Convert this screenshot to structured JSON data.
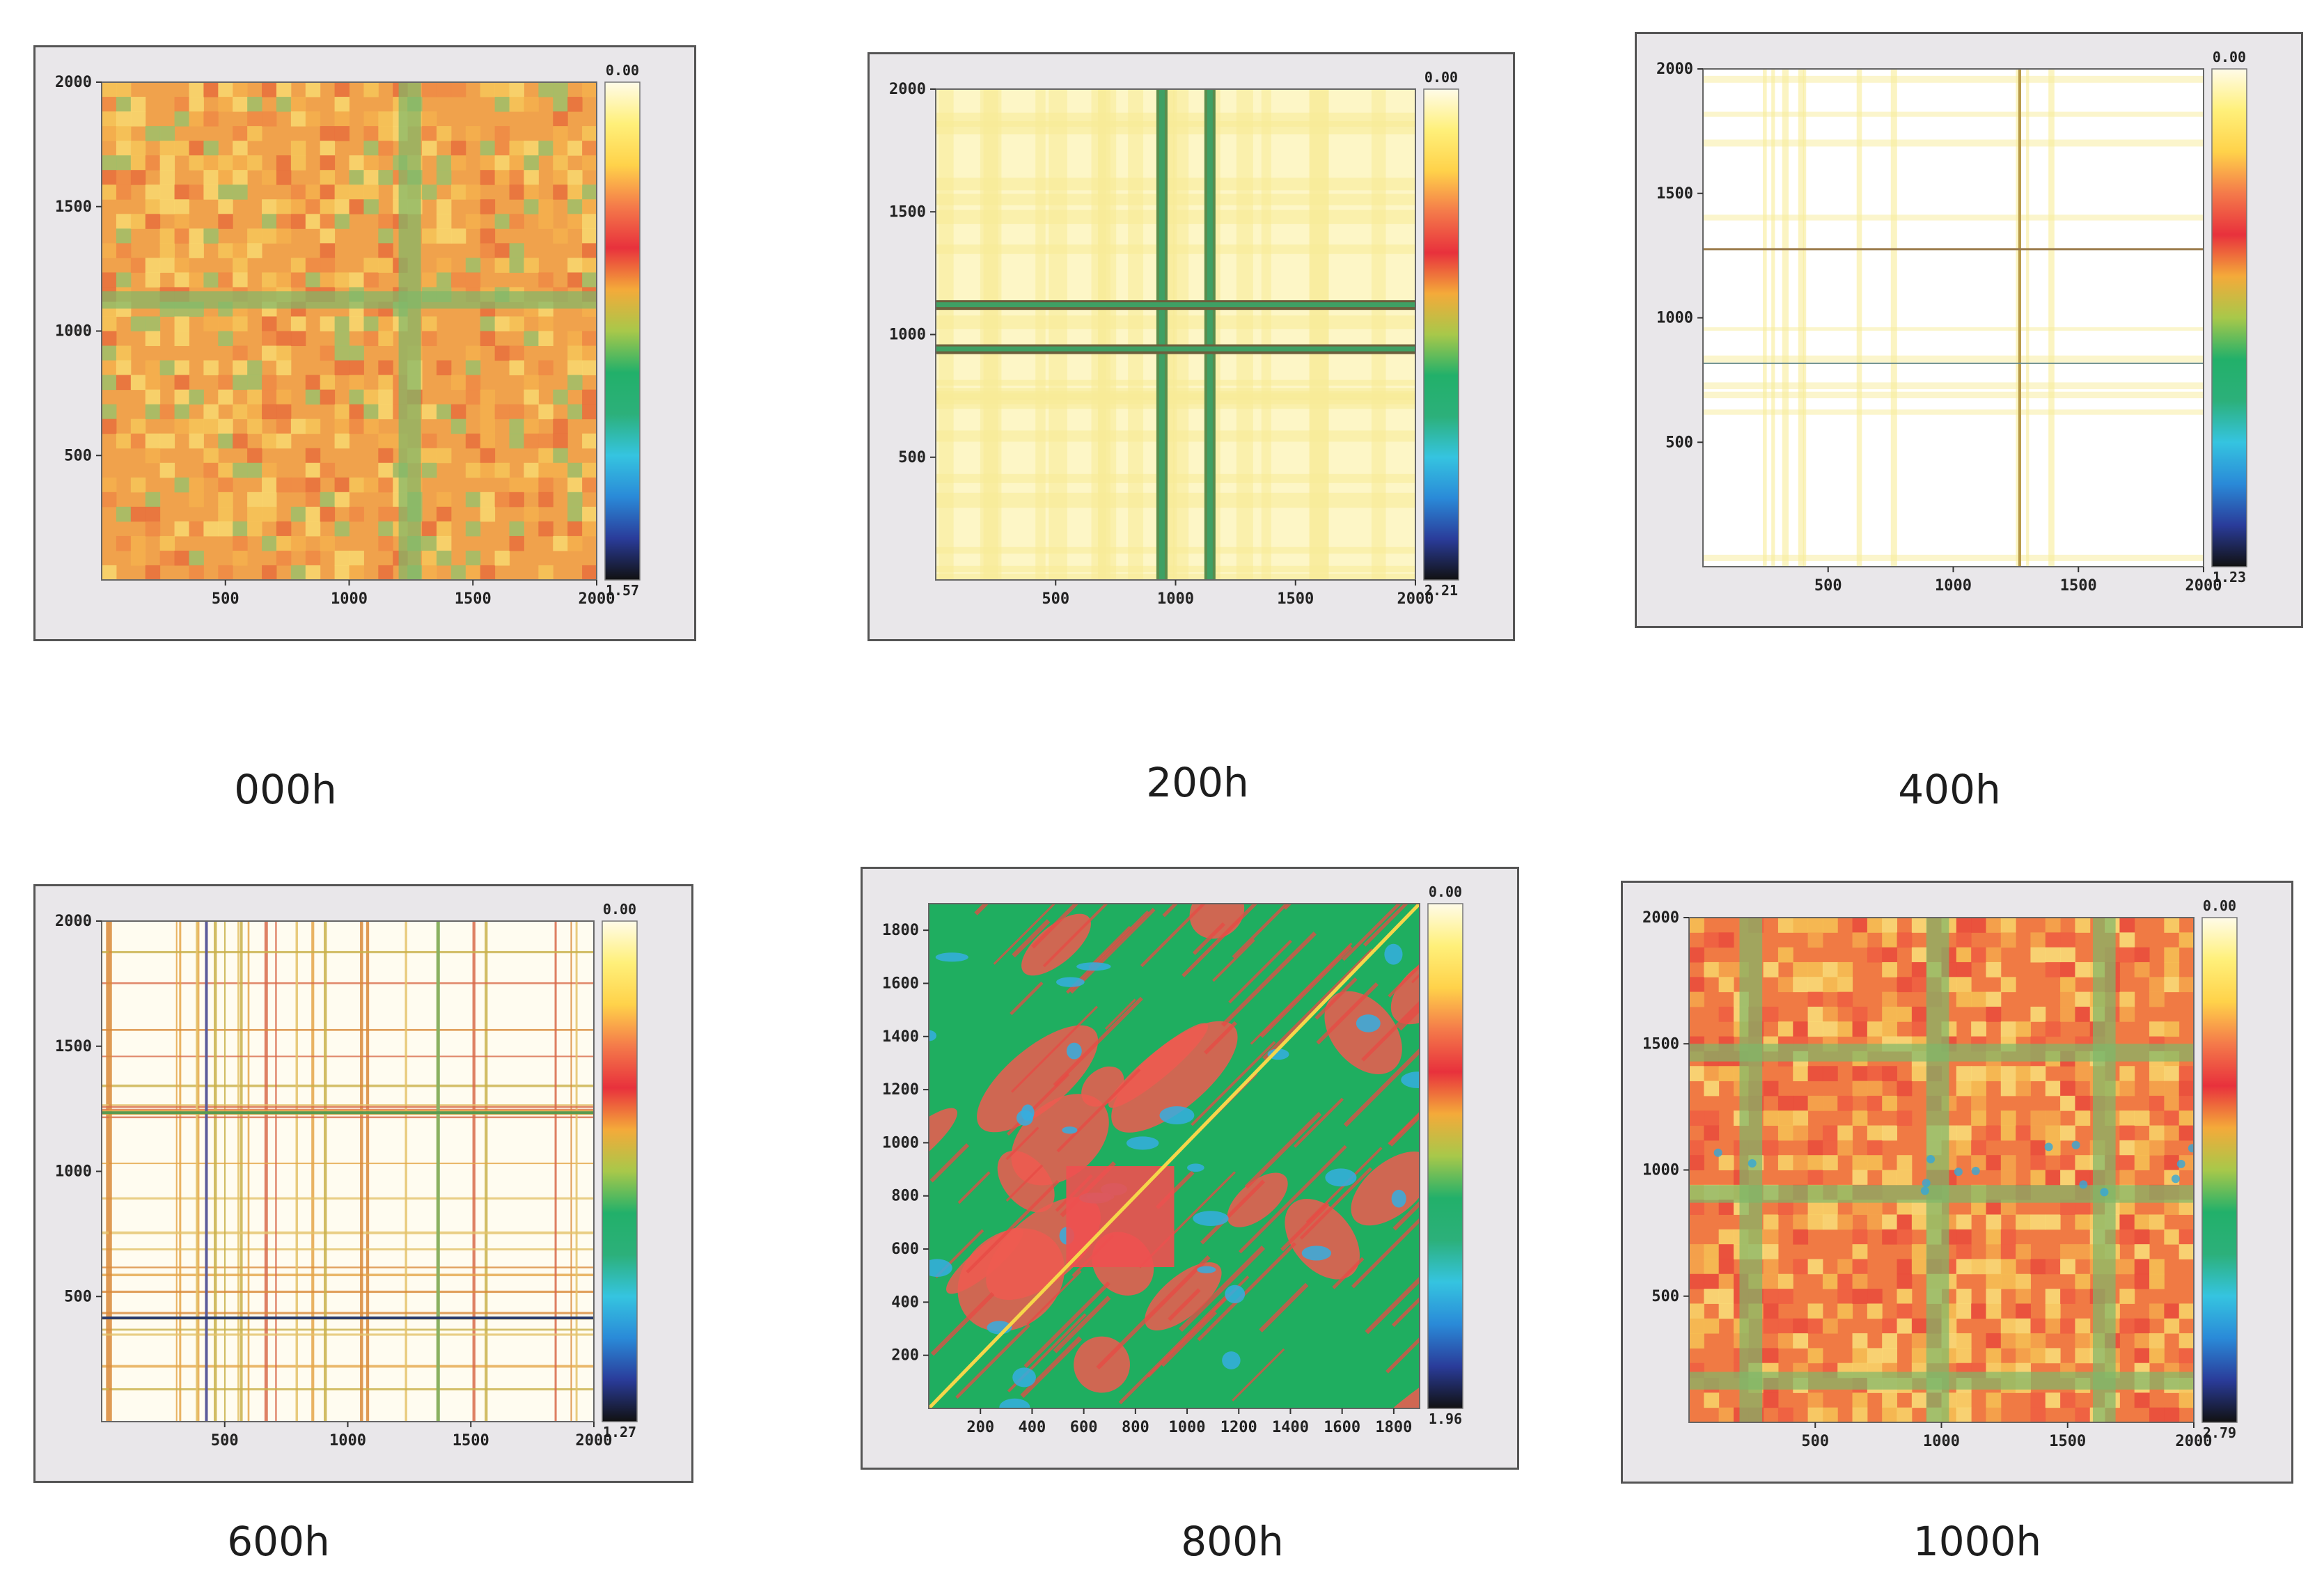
{
  "panels": [
    {
      "id": "000h",
      "caption": "000h",
      "pattern": "dense-orange",
      "y_ticks": [
        "2000",
        "1500",
        "1000",
        "500"
      ],
      "x_ticks": [
        "500",
        "1000",
        "1500",
        "2000"
      ],
      "colorbar_top": "0.00",
      "colorbar_bottom": "1.57",
      "range": [
        0,
        2000
      ]
    },
    {
      "id": "200h",
      "caption": "200h",
      "pattern": "pale-yellow-cross",
      "y_ticks": [
        "2000",
        "1500",
        "1000",
        "500"
      ],
      "x_ticks": [
        "500",
        "1000",
        "1500",
        "2000"
      ],
      "colorbar_top": "0.00",
      "colorbar_bottom": "2.21",
      "range": [
        0,
        2000
      ]
    },
    {
      "id": "400h",
      "caption": "400h",
      "pattern": "mostly-white",
      "y_ticks": [
        "2000",
        "1500",
        "1000",
        "500"
      ],
      "x_ticks": [
        "500",
        "1000",
        "1500",
        "2000"
      ],
      "colorbar_top": "0.00",
      "colorbar_bottom": "1.23",
      "range": [
        0,
        2000
      ]
    },
    {
      "id": "600h",
      "caption": "600h",
      "pattern": "sparse-lines",
      "y_ticks": [
        "2000",
        "1500",
        "1000",
        "500"
      ],
      "x_ticks": [
        "500",
        "1000",
        "1500",
        "2000"
      ],
      "colorbar_top": "0.00",
      "colorbar_bottom": "1.27",
      "range": [
        0,
        2000
      ]
    },
    {
      "id": "800h",
      "caption": "800h",
      "pattern": "green-diagonal",
      "y_ticks": [
        "1800",
        "1600",
        "1400",
        "1200",
        "1000",
        "800",
        "600",
        "400",
        "200"
      ],
      "x_ticks": [
        "200",
        "400",
        "600",
        "800",
        "1000",
        "1200",
        "1400",
        "1600",
        "1800"
      ],
      "colorbar_top": "0.00",
      "colorbar_bottom": "1.96",
      "range": [
        0,
        1900
      ]
    },
    {
      "id": "1000h",
      "caption": "1000h",
      "pattern": "dense-red-yellow",
      "y_ticks": [
        "2000",
        "1500",
        "1000",
        "500"
      ],
      "x_ticks": [
        "500",
        "1000",
        "1500",
        "2000"
      ],
      "colorbar_top": "0.00",
      "colorbar_bottom": "2.79",
      "range": [
        0,
        2000
      ]
    }
  ],
  "chart_data": [
    {
      "type": "heatmap",
      "title": "000h",
      "xlim": [
        0,
        2000
      ],
      "ylim": [
        0,
        2000
      ],
      "colorbar_range": [
        0.0,
        1.57
      ]
    },
    {
      "type": "heatmap",
      "title": "200h",
      "xlim": [
        0,
        2000
      ],
      "ylim": [
        0,
        2000
      ],
      "colorbar_range": [
        0.0,
        2.21
      ]
    },
    {
      "type": "heatmap",
      "title": "400h",
      "xlim": [
        0,
        2000
      ],
      "ylim": [
        0,
        2000
      ],
      "colorbar_range": [
        0.0,
        1.23
      ]
    },
    {
      "type": "heatmap",
      "title": "600h",
      "xlim": [
        0,
        2000
      ],
      "ylim": [
        0,
        2000
      ],
      "colorbar_range": [
        0.0,
        1.27
      ]
    },
    {
      "type": "heatmap",
      "title": "800h",
      "xlim": [
        0,
        1900
      ],
      "ylim": [
        0,
        1900
      ],
      "colorbar_range": [
        0.0,
        1.96
      ]
    },
    {
      "type": "heatmap",
      "title": "1000h",
      "xlim": [
        0,
        2000
      ],
      "ylim": [
        0,
        2000
      ],
      "colorbar_range": [
        0.0,
        2.79
      ]
    }
  ],
  "colorbar_stops": [
    "#fffbe8",
    "#fff07a",
    "#ffd24a",
    "#f47a4a",
    "#e8313c",
    "#f4aa3a",
    "#a8c84a",
    "#22b06a",
    "#2cb07a",
    "#35c4e0",
    "#2a8ad8",
    "#2a3c9a",
    "#111111"
  ]
}
